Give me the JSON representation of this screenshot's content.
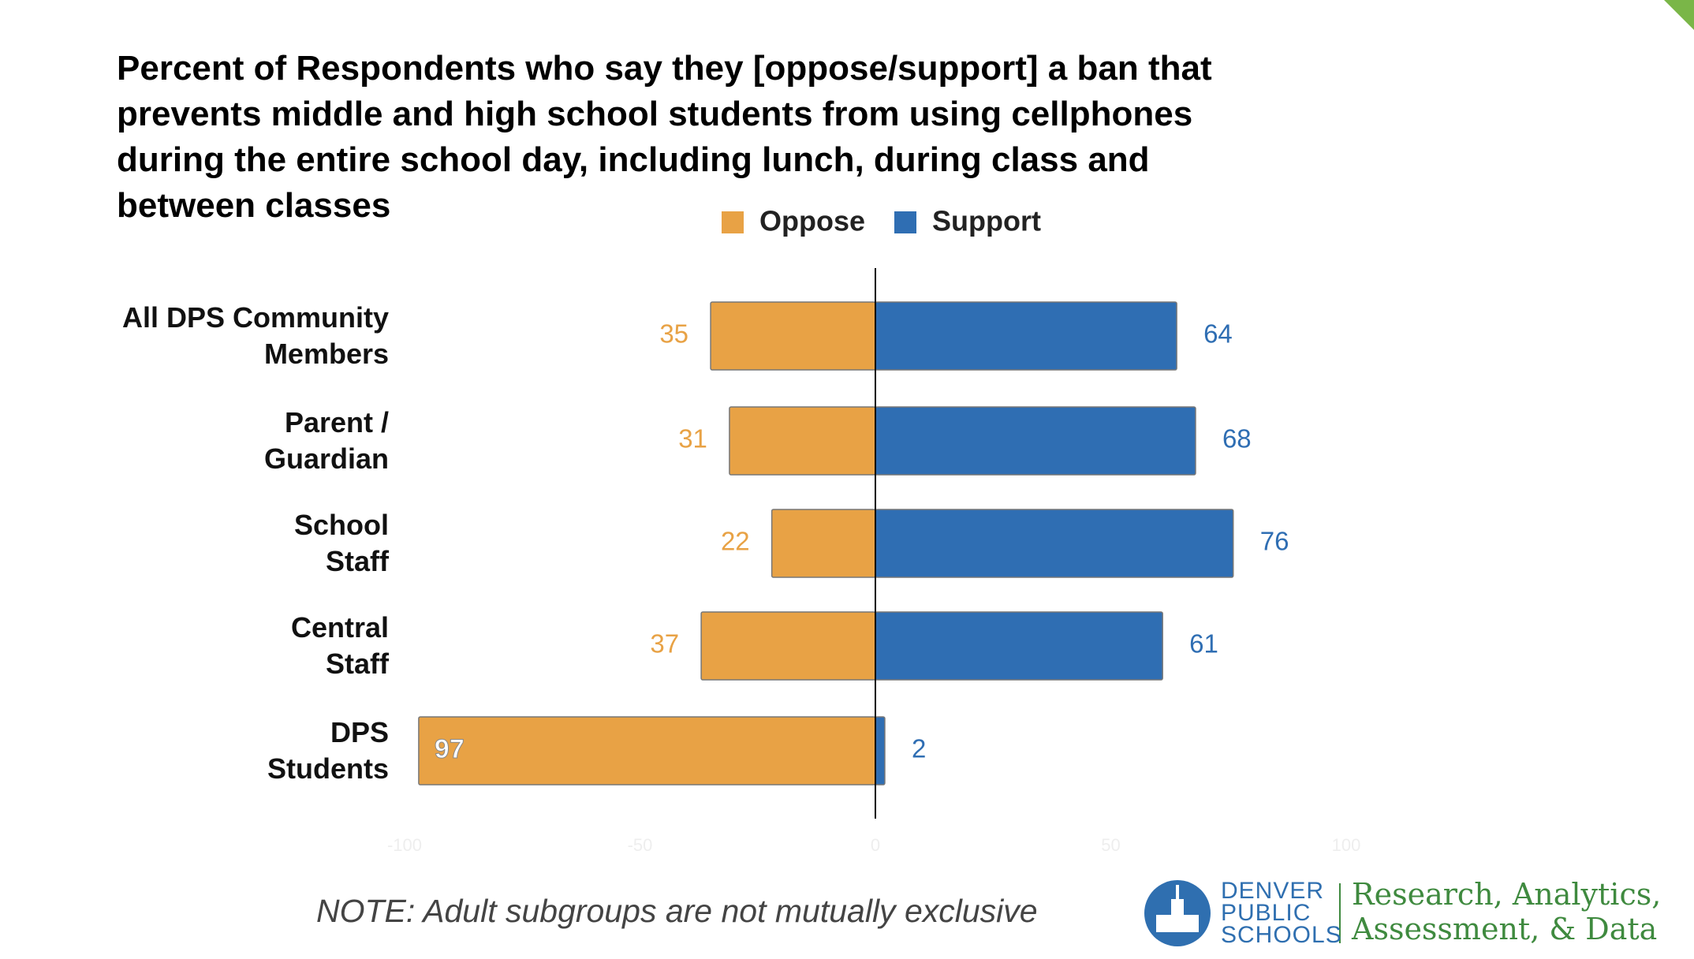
{
  "chart_data": {
    "type": "diverging-bar",
    "title": "Percent of Respondents who say they [oppose/support] a ban that\nprevents middle and high school students from using cellphones\nduring the entire school day, including lunch, during class and\nbetween classes",
    "categories": [
      "All DPS Community\nMembers",
      "Parent /\nGuardian",
      "School\nStaff",
      "Central\nStaff",
      "DPS\nStudents"
    ],
    "series": [
      {
        "name": "Oppose",
        "color": "#e8a245",
        "values": [
          -35,
          -31,
          -22,
          -37,
          -97
        ],
        "value_labels": [
          "35",
          "31",
          "22",
          "37",
          "97"
        ]
      },
      {
        "name": "Support",
        "color": "#2f6eb3",
        "values": [
          64,
          68,
          76,
          61,
          2
        ]
      }
    ],
    "xlim": [
      -100,
      100
    ],
    "xticks": [
      -100,
      -50,
      0,
      50,
      100
    ],
    "note": "NOTE: Adult subgroups are not mutually exclusive"
  },
  "footer": {
    "logo": "DENVER\nPUBLIC\nSCHOOLS",
    "department": "Research, Analytics,\nAssessment, & Data"
  }
}
